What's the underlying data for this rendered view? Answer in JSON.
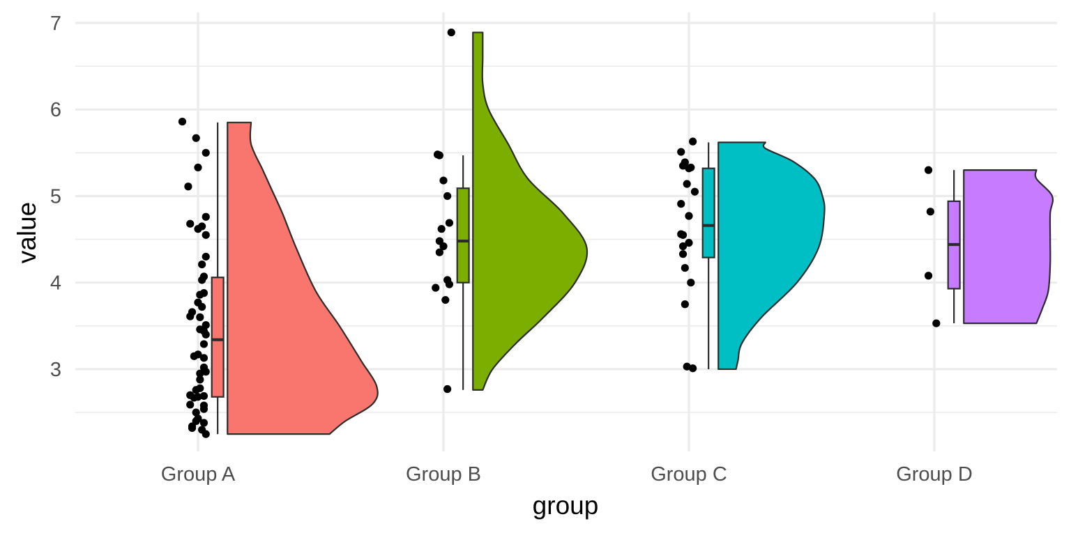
{
  "chart_data": {
    "type": "raincloud",
    "title": "",
    "xlabel": "group",
    "ylabel": "value",
    "ylim": [
      2.05,
      7.12
    ],
    "y_ticks": [
      3,
      4,
      5,
      6,
      7
    ],
    "y_minor_ticks": [
      2.5,
      3.5,
      4.5,
      5.5,
      6.5
    ],
    "grid": true,
    "legend": "none",
    "categories": [
      "Group A",
      "Group B",
      "Group C",
      "Group D"
    ],
    "groups": [
      {
        "name": "Group A",
        "color": "#F8766D",
        "box": {
          "min": 2.25,
          "q1": 2.68,
          "median": 3.34,
          "q3": 4.06,
          "max": 5.85
        },
        "density": {
          "y": [
            2.25,
            2.4,
            2.6,
            2.8,
            3.1,
            3.5,
            3.9,
            4.4,
            4.8,
            5.1,
            5.3,
            5.6,
            5.85
          ],
          "w": [
            0.52,
            0.6,
            0.74,
            0.76,
            0.68,
            0.57,
            0.45,
            0.35,
            0.28,
            0.22,
            0.18,
            0.12,
            0.12
          ]
        },
        "points": [
          {
            "x": -0.08,
            "y": 5.86
          },
          {
            "x": -0.01,
            "y": 5.67
          },
          {
            "x": 0.04,
            "y": 5.5
          },
          {
            "x": -0.0,
            "y": 5.33
          },
          {
            "x": -0.05,
            "y": 5.11
          },
          {
            "x": 0.04,
            "y": 4.76
          },
          {
            "x": -0.04,
            "y": 4.68
          },
          {
            "x": 0.02,
            "y": 4.65
          },
          {
            "x": 0.0,
            "y": 4.62
          },
          {
            "x": 0.04,
            "y": 4.55
          },
          {
            "x": 0.04,
            "y": 4.3
          },
          {
            "x": 0.02,
            "y": 4.21
          },
          {
            "x": 0.03,
            "y": 4.07
          },
          {
            "x": 0.02,
            "y": 4.03
          },
          {
            "x": 0.03,
            "y": 3.88
          },
          {
            "x": 0.01,
            "y": 3.86
          },
          {
            "x": 0.0,
            "y": 3.77
          },
          {
            "x": 0.02,
            "y": 3.72
          },
          {
            "x": -0.03,
            "y": 3.66
          },
          {
            "x": -0.04,
            "y": 3.61
          },
          {
            "x": 0.01,
            "y": 3.6
          },
          {
            "x": 0.04,
            "y": 3.51
          },
          {
            "x": 0.01,
            "y": 3.46
          },
          {
            "x": 0.03,
            "y": 3.44
          },
          {
            "x": 0.04,
            "y": 3.4
          },
          {
            "x": 0.03,
            "y": 3.29
          },
          {
            "x": 0.0,
            "y": 3.17
          },
          {
            "x": -0.02,
            "y": 3.15
          },
          {
            "x": 0.03,
            "y": 3.13
          },
          {
            "x": 0.03,
            "y": 3.02
          },
          {
            "x": 0.04,
            "y": 2.97
          },
          {
            "x": 0.01,
            "y": 2.95
          },
          {
            "x": 0.01,
            "y": 2.88
          },
          {
            "x": 0.01,
            "y": 2.78
          },
          {
            "x": -0.01,
            "y": 2.76
          },
          {
            "x": -0.04,
            "y": 2.7
          },
          {
            "x": 0.03,
            "y": 2.69
          },
          {
            "x": -0.0,
            "y": 2.68
          },
          {
            "x": -0.02,
            "y": 2.67
          },
          {
            "x": -0.04,
            "y": 2.59
          },
          {
            "x": 0.03,
            "y": 2.58
          },
          {
            "x": 0.03,
            "y": 2.54
          },
          {
            "x": -0.01,
            "y": 2.5
          },
          {
            "x": -0.0,
            "y": 2.43
          },
          {
            "x": -0.01,
            "y": 2.4
          },
          {
            "x": 0.03,
            "y": 2.38
          },
          {
            "x": -0.03,
            "y": 2.34
          },
          {
            "x": -0.03,
            "y": 2.32
          },
          {
            "x": 0.02,
            "y": 2.3
          },
          {
            "x": 0.04,
            "y": 2.25
          }
        ]
      },
      {
        "name": "Group B",
        "color": "#7CAE00",
        "box": {
          "min": 2.76,
          "q1": 4.0,
          "median": 4.48,
          "q3": 5.09,
          "max": 5.47
        },
        "density": {
          "y": [
            2.76,
            3.0,
            3.3,
            3.6,
            4.0,
            4.4,
            4.8,
            5.2,
            5.6,
            6.0,
            6.3,
            6.6,
            6.89
          ],
          "w": [
            0.05,
            0.1,
            0.22,
            0.36,
            0.52,
            0.58,
            0.46,
            0.28,
            0.18,
            0.08,
            0.05,
            0.05,
            0.05
          ]
        },
        "points": [
          {
            "x": 0.04,
            "y": 6.89
          },
          {
            "x": -0.03,
            "y": 5.48
          },
          {
            "x": -0.02,
            "y": 5.47
          },
          {
            "x": 0.0,
            "y": 5.18
          },
          {
            "x": 0.02,
            "y": 5.0
          },
          {
            "x": 0.03,
            "y": 4.69
          },
          {
            "x": -0.01,
            "y": 4.62
          },
          {
            "x": -0.02,
            "y": 4.48
          },
          {
            "x": 0.0,
            "y": 4.42
          },
          {
            "x": -0.02,
            "y": 4.35
          },
          {
            "x": 0.02,
            "y": 4.03
          },
          {
            "x": 0.03,
            "y": 3.98
          },
          {
            "x": -0.04,
            "y": 3.94
          },
          {
            "x": 0.01,
            "y": 3.8
          },
          {
            "x": 0.02,
            "y": 2.77
          }
        ]
      },
      {
        "name": "Group C",
        "color": "#00BFC4",
        "box": {
          "min": 3.0,
          "q1": 4.29,
          "median": 4.66,
          "q3": 5.32,
          "max": 5.62
        },
        "density": {
          "y": [
            3.0,
            3.1,
            3.3,
            3.6,
            4.0,
            4.4,
            4.8,
            5.0,
            5.2,
            5.4,
            5.55,
            5.62
          ],
          "w": [
            0.09,
            0.1,
            0.12,
            0.22,
            0.4,
            0.51,
            0.54,
            0.53,
            0.49,
            0.38,
            0.24,
            0.24
          ]
        },
        "points": [
          {
            "x": 0.02,
            "y": 5.63
          },
          {
            "x": -0.04,
            "y": 5.51
          },
          {
            "x": -0.02,
            "y": 5.39
          },
          {
            "x": -0.03,
            "y": 5.35
          },
          {
            "x": 0.01,
            "y": 5.33
          },
          {
            "x": 0.0,
            "y": 5.32
          },
          {
            "x": -0.01,
            "y": 5.14
          },
          {
            "x": 0.03,
            "y": 5.05
          },
          {
            "x": -0.04,
            "y": 4.91
          },
          {
            "x": 0.0,
            "y": 4.77
          },
          {
            "x": -0.04,
            "y": 4.56
          },
          {
            "x": -0.03,
            "y": 4.55
          },
          {
            "x": -0.0,
            "y": 4.46
          },
          {
            "x": -0.03,
            "y": 4.42
          },
          {
            "x": -0.03,
            "y": 4.33
          },
          {
            "x": -0.02,
            "y": 4.17
          },
          {
            "x": 0.01,
            "y": 4.0
          },
          {
            "x": -0.02,
            "y": 3.75
          },
          {
            "x": -0.01,
            "y": 3.03
          },
          {
            "x": 0.02,
            "y": 3.01
          }
        ]
      },
      {
        "name": "Group D",
        "color": "#C77CFF",
        "box": {
          "min": 3.53,
          "q1": 3.93,
          "median": 4.44,
          "q3": 4.94,
          "max": 5.3
        },
        "density": {
          "y": [
            3.53,
            3.7,
            3.9,
            4.2,
            4.5,
            4.8,
            5.0,
            5.2,
            5.3
          ],
          "w": [
            0.37,
            0.4,
            0.43,
            0.44,
            0.44,
            0.44,
            0.45,
            0.37,
            0.37
          ]
        },
        "points": [
          {
            "x": -0.03,
            "y": 5.3
          },
          {
            "x": -0.02,
            "y": 4.82
          },
          {
            "x": -0.03,
            "y": 4.08
          },
          {
            "x": 0.01,
            "y": 3.53
          }
        ]
      }
    ]
  }
}
